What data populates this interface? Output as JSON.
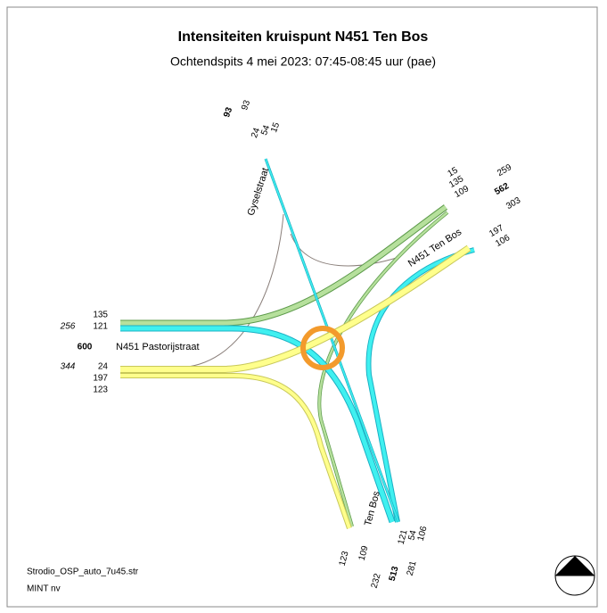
{
  "title": "Intensiteiten kruispunt N451 Ten Bos",
  "subtitle": "Ochtendspits 4 mei 2023: 07:45-08:45 uur (pae)",
  "arms": [
    {
      "name": "Gyselstraat",
      "total": 93,
      "groups": [
        {
          "total": 93,
          "flows": [
            24,
            54,
            15
          ]
        }
      ]
    },
    {
      "name": "N451 Ten Bos",
      "total": 562,
      "groups": [
        {
          "total": 259,
          "flows": [
            15,
            135,
            109
          ]
        },
        {
          "total": 303,
          "flows": [
            197,
            106
          ]
        }
      ]
    },
    {
      "name": "N451 Pastorijstraat",
      "total": 600,
      "groups": [
        {
          "total": 256,
          "flows": [
            135,
            121
          ]
        },
        {
          "total": 344,
          "flows": [
            24,
            197,
            123
          ]
        }
      ]
    },
    {
      "name": "Ten Bos",
      "total": 513,
      "groups": [
        {
          "total": 232,
          "flows": [
            123,
            109
          ]
        },
        {
          "total": 281,
          "flows": [
            121,
            54,
            106
          ]
        }
      ]
    }
  ],
  "footer": [
    "Strodio_OSP_auto_7u45.str",
    "MINT nv"
  ]
}
